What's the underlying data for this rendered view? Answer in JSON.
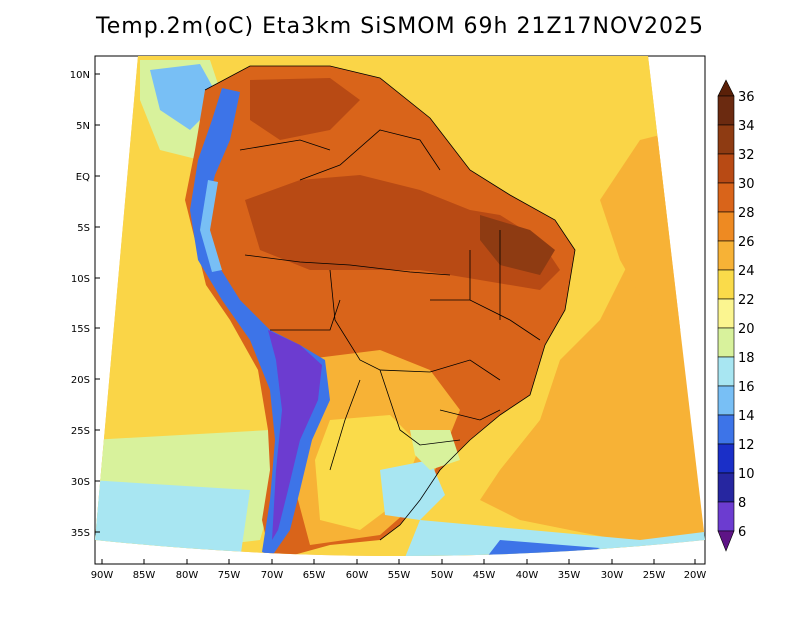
{
  "title": "Temp.2m(oC) Eta3km SiSMOM 69h 21Z17NOV2025",
  "lat_ticks": [
    "10N",
    "5N",
    "EQ",
    "5S",
    "10S",
    "15S",
    "20S",
    "25S",
    "30S",
    "35S"
  ],
  "lon_ticks": [
    "90W",
    "85W",
    "80W",
    "75W",
    "70W",
    "65W",
    "60W",
    "55W",
    "50W",
    "45W",
    "40W",
    "35W",
    "30W",
    "25W",
    "20W"
  ],
  "colorbar": {
    "labels": [
      "36",
      "34",
      "32",
      "30",
      "28",
      "26",
      "24",
      "22",
      "20",
      "18",
      "16",
      "14",
      "12",
      "10",
      "8",
      "6"
    ],
    "colors": [
      "#6b2a10",
      "#8e3b12",
      "#b84a14",
      "#d9641a",
      "#ee8a22",
      "#f7b236",
      "#fadb4a",
      "#fbf590",
      "#d8f29c",
      "#a8e6f2",
      "#78bff5",
      "#3d74e8",
      "#1a2fc8",
      "#2626a0",
      "#6c3cd0",
      "#7a1aa8"
    ],
    "max_arrow_color": "#5a2008",
    "min_arrow_color": "#5e1486"
  },
  "colors": {
    "ocean_warm": "#f7b236",
    "ocean_mild": "#fadb4a",
    "ocean_cool": "#d8f29c",
    "land_hot": "#d9641a",
    "land_very_hot": "#b84a14",
    "andes": "#3d74e8",
    "andes_peak": "#6c3cd0",
    "south_cool": "#78bff5"
  }
}
